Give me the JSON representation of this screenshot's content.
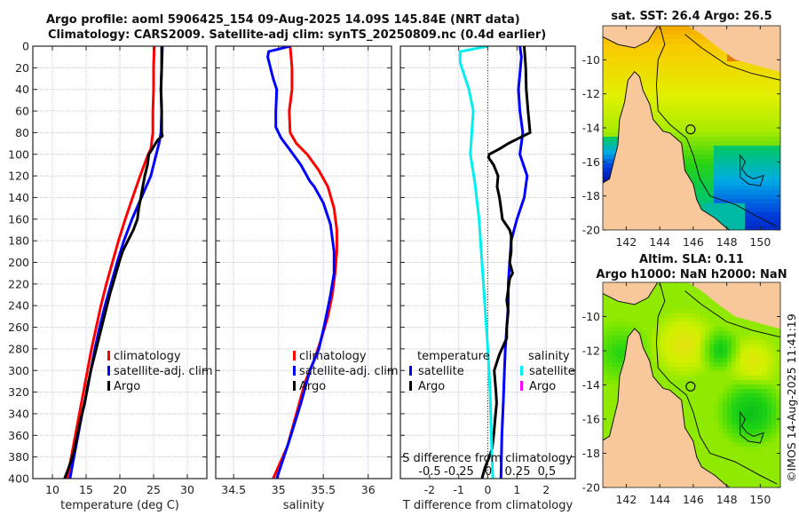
{
  "header": {
    "line1": "Argo profile: aoml 5906425_154 09-Aug-2025 14.09S 145.84E (NRT data)",
    "line2": "Climatology: CARS2009. Satellite-adj clim: synTS_20250809.nc (0.4d earlier)"
  },
  "colors": {
    "climatology": "#ff0000",
    "satellite": "#0000ff",
    "argo": "#000000",
    "salinity_satellite": "#00f0f0",
    "salinity_argo": "#ff00ff",
    "land": "#f8c89a",
    "grid": "#c8c8e6"
  },
  "copyright": "©IMOS 14-Aug-2025 11:41:19",
  "chart_data": [
    {
      "id": "temperature",
      "type": "line",
      "xlabel": "temperature (deg C)",
      "ylabel": "",
      "xlim": [
        7.1,
        32.9
      ],
      "ylim": [
        0,
        400
      ],
      "y_reversed": true,
      "xticks": [
        10,
        15,
        20,
        25,
        30
      ],
      "yticks": [
        0,
        20,
        40,
        60,
        80,
        100,
        120,
        140,
        160,
        180,
        200,
        220,
        240,
        260,
        280,
        300,
        320,
        340,
        360,
        380,
        400
      ],
      "grid": true,
      "legend": {
        "placement": "center-right",
        "entries": [
          "climatology",
          "satellite-adj. clim",
          "Argo"
        ]
      },
      "series": [
        {
          "name": "climatology",
          "color": "#ff0000",
          "points": [
            [
              25.1,
              0
            ],
            [
              25.0,
              20
            ],
            [
              25.0,
              40
            ],
            [
              24.9,
              60
            ],
            [
              24.9,
              80
            ],
            [
              24.6,
              95
            ],
            [
              24.2,
              100
            ],
            [
              23.0,
              120
            ],
            [
              21.9,
              140
            ],
            [
              20.8,
              160
            ],
            [
              19.8,
              180
            ],
            [
              18.9,
              200
            ],
            [
              18.0,
              220
            ],
            [
              17.2,
              240
            ],
            [
              16.5,
              260
            ],
            [
              15.8,
              280
            ],
            [
              15.2,
              300
            ],
            [
              14.6,
              320
            ],
            [
              14.0,
              340
            ],
            [
              13.4,
              360
            ],
            [
              12.8,
              380
            ],
            [
              12.2,
              400
            ]
          ]
        },
        {
          "name": "satellite-adj. clim",
          "color": "#0000ff",
          "points": [
            [
              26.3,
              0
            ],
            [
              26.2,
              20
            ],
            [
              26.1,
              40
            ],
            [
              26.2,
              60
            ],
            [
              26.1,
              80
            ],
            [
              25.8,
              90
            ],
            [
              25.4,
              100
            ],
            [
              24.6,
              120
            ],
            [
              23.2,
              140
            ],
            [
              21.8,
              160
            ],
            [
              20.6,
              180
            ],
            [
              19.6,
              200
            ],
            [
              18.7,
              220
            ],
            [
              17.8,
              240
            ],
            [
              17.0,
              260
            ],
            [
              16.3,
              280
            ],
            [
              15.7,
              300
            ],
            [
              15.1,
              320
            ],
            [
              14.4,
              340
            ],
            [
              13.8,
              360
            ],
            [
              13.2,
              380
            ],
            [
              12.6,
              400
            ]
          ]
        },
        {
          "name": "Argo",
          "color": "#000000",
          "points": [
            [
              26.2,
              0
            ],
            [
              26.2,
              20
            ],
            [
              26.1,
              40
            ],
            [
              26.2,
              60
            ],
            [
              26.2,
              80
            ],
            [
              26.3,
              83
            ],
            [
              25.6,
              87
            ],
            [
              24.8,
              95
            ],
            [
              24.3,
              100
            ],
            [
              24.1,
              110
            ],
            [
              23.7,
              120
            ],
            [
              23.4,
              130
            ],
            [
              23.1,
              140
            ],
            [
              22.8,
              150
            ],
            [
              22.6,
              160
            ],
            [
              22.0,
              170
            ],
            [
              21.2,
              180
            ],
            [
              20.4,
              190
            ],
            [
              19.9,
              200
            ],
            [
              19.2,
              215
            ],
            [
              18.5,
              230
            ],
            [
              17.7,
              250
            ],
            [
              16.9,
              270
            ],
            [
              16.3,
              285
            ],
            [
              15.7,
              300
            ],
            [
              15.2,
              315
            ],
            [
              14.8,
              330
            ],
            [
              14.2,
              345
            ],
            [
              13.7,
              360
            ],
            [
              13.2,
              375
            ],
            [
              12.7,
              385
            ],
            [
              12.3,
              392
            ],
            [
              11.8,
              400
            ]
          ]
        }
      ]
    },
    {
      "id": "salinity",
      "type": "line",
      "xlabel": "salinity",
      "xlim": [
        34.3,
        36.26
      ],
      "ylim": [
        0,
        400
      ],
      "y_reversed": true,
      "xticks": [
        34.5,
        35,
        35.5,
        36
      ],
      "xtick_labels": [
        "34.5",
        "35",
        "35.5",
        "36"
      ],
      "grid": true,
      "legend": {
        "placement": "center-right",
        "entries": [
          "climatology",
          "satellite-adj. clim",
          "Argo"
        ]
      },
      "series": [
        {
          "name": "climatology",
          "color": "#ff0000",
          "points": [
            [
              35.13,
              0
            ],
            [
              35.15,
              20
            ],
            [
              35.15,
              40
            ],
            [
              35.12,
              60
            ],
            [
              35.13,
              80
            ],
            [
              35.2,
              90
            ],
            [
              35.32,
              100
            ],
            [
              35.45,
              115
            ],
            [
              35.55,
              130
            ],
            [
              35.62,
              150
            ],
            [
              35.65,
              170
            ],
            [
              35.65,
              190
            ],
            [
              35.63,
              210
            ],
            [
              35.6,
              230
            ],
            [
              35.55,
              250
            ],
            [
              35.48,
              270
            ],
            [
              35.4,
              290
            ],
            [
              35.3,
              310
            ],
            [
              35.2,
              340
            ],
            [
              35.1,
              370
            ],
            [
              34.94,
              400
            ]
          ]
        },
        {
          "name": "satellite-adj. clim",
          "color": "#0000ff",
          "points": [
            [
              35.13,
              0
            ],
            [
              34.89,
              5
            ],
            [
              34.88,
              10
            ],
            [
              34.94,
              30
            ],
            [
              34.98,
              40
            ],
            [
              34.97,
              60
            ],
            [
              34.97,
              75
            ],
            [
              35.03,
              85
            ],
            [
              35.12,
              95
            ],
            [
              35.25,
              110
            ],
            [
              35.35,
              125
            ],
            [
              35.4,
              130
            ],
            [
              35.5,
              145
            ],
            [
              35.58,
              165
            ],
            [
              35.62,
              190
            ],
            [
              35.62,
              210
            ],
            [
              35.58,
              230
            ],
            [
              35.52,
              255
            ],
            [
              35.45,
              280
            ],
            [
              35.35,
              300
            ],
            [
              35.25,
              330
            ],
            [
              35.12,
              365
            ],
            [
              34.98,
              400
            ]
          ]
        }
      ]
    },
    {
      "id": "difference",
      "type": "line",
      "xlabel": "T difference from climatology",
      "xlim": [
        -3,
        3
      ],
      "ylim": [
        0,
        400
      ],
      "y_reversed": true,
      "xticks": [
        -2,
        -1,
        0,
        1,
        2
      ],
      "top_axis": {
        "label": "S difference from climatology",
        "ticks": [
          "-0.5",
          "-0.25",
          "0",
          "0.25",
          "0.5"
        ]
      },
      "grid": true,
      "legend": {
        "placement": "center",
        "groups": [
          {
            "title": "temperature",
            "entries": [
              "satellite",
              "Argo"
            ]
          },
          {
            "title": "salinity",
            "entries": [
              "satellite",
              "Argo"
            ]
          }
        ]
      },
      "series": [
        {
          "name": "temperature satellite",
          "color": "#0000ff",
          "points": [
            [
              1.1,
              0
            ],
            [
              1.15,
              10
            ],
            [
              1.05,
              40
            ],
            [
              1.1,
              60
            ],
            [
              1.2,
              80
            ],
            [
              1.1,
              100
            ],
            [
              1.35,
              120
            ],
            [
              1.25,
              140
            ],
            [
              1.0,
              160
            ],
            [
              0.8,
              180
            ],
            [
              0.75,
              200
            ],
            [
              0.7,
              220
            ],
            [
              0.7,
              240
            ],
            [
              0.65,
              260
            ],
            [
              0.6,
              280
            ],
            [
              0.57,
              300
            ],
            [
              0.53,
              330
            ],
            [
              0.48,
              360
            ],
            [
              0.45,
              400
            ]
          ]
        },
        {
          "name": "temperature Argo",
          "color": "#000000",
          "points": [
            [
              1.25,
              0
            ],
            [
              1.3,
              20
            ],
            [
              1.32,
              40
            ],
            [
              1.38,
              60
            ],
            [
              1.45,
              80
            ],
            [
              1.0,
              86
            ],
            [
              0.7,
              90
            ],
            [
              0.4,
              95
            ],
            [
              0.05,
              100
            ],
            [
              0.02,
              103
            ],
            [
              0.2,
              110
            ],
            [
              0.35,
              120
            ],
            [
              0.32,
              130
            ],
            [
              0.4,
              140
            ],
            [
              0.45,
              150
            ],
            [
              0.5,
              160
            ],
            [
              0.75,
              170
            ],
            [
              0.8,
              175
            ],
            [
              0.8,
              190
            ],
            [
              0.75,
              200
            ],
            [
              0.85,
              210
            ],
            [
              0.75,
              215
            ],
            [
              0.7,
              225
            ],
            [
              0.65,
              235
            ],
            [
              0.7,
              245
            ],
            [
              0.65,
              260
            ],
            [
              0.65,
              270
            ],
            [
              0.4,
              285
            ],
            [
              0.22,
              300
            ],
            [
              0.28,
              320
            ],
            [
              0.3,
              330
            ],
            [
              0.25,
              345
            ],
            [
              0.2,
              360
            ],
            [
              0.15,
              372
            ],
            [
              0.05,
              380
            ],
            [
              -0.1,
              390
            ],
            [
              -0.2,
              400
            ]
          ]
        },
        {
          "name": "salinity satellite",
          "color": "#00f0f0",
          "points": [
            [
              0.0,
              0
            ],
            [
              -0.95,
              5
            ],
            [
              -0.95,
              15
            ],
            [
              -0.65,
              40
            ],
            [
              -0.5,
              60
            ],
            [
              -0.55,
              80
            ],
            [
              -0.6,
              100
            ],
            [
              -0.45,
              125
            ],
            [
              -0.3,
              160
            ],
            [
              -0.2,
              200
            ],
            [
              -0.1,
              240
            ],
            [
              0.0,
              280
            ],
            [
              0.08,
              320
            ],
            [
              0.12,
              360
            ],
            [
              0.17,
              400
            ]
          ]
        }
      ]
    },
    {
      "id": "sst_map",
      "type": "heatmap",
      "title": "sat. SST: 26.4 Argo: 26.5",
      "xlim": [
        140.6,
        151.2
      ],
      "ylim": [
        -20,
        -8
      ],
      "xticks": [
        142,
        144,
        146,
        148,
        150
      ],
      "yticks": [
        -10,
        -12,
        -14,
        -16,
        -18,
        -20
      ],
      "marker": {
        "lon": 145.84,
        "lat": -14.09
      }
    },
    {
      "id": "sla_map",
      "type": "heatmap",
      "title_line1": "Altim. SLA: 0.11",
      "title_line2": "Argo h1000: NaN h2000: NaN",
      "xlim": [
        140.6,
        151.2
      ],
      "ylim": [
        -20,
        -8
      ],
      "xticks": [
        142,
        144,
        146,
        148,
        150
      ],
      "yticks": [
        -10,
        -12,
        -14,
        -16,
        -18,
        -20
      ],
      "marker": {
        "lon": 145.84,
        "lat": -14.09
      }
    }
  ]
}
